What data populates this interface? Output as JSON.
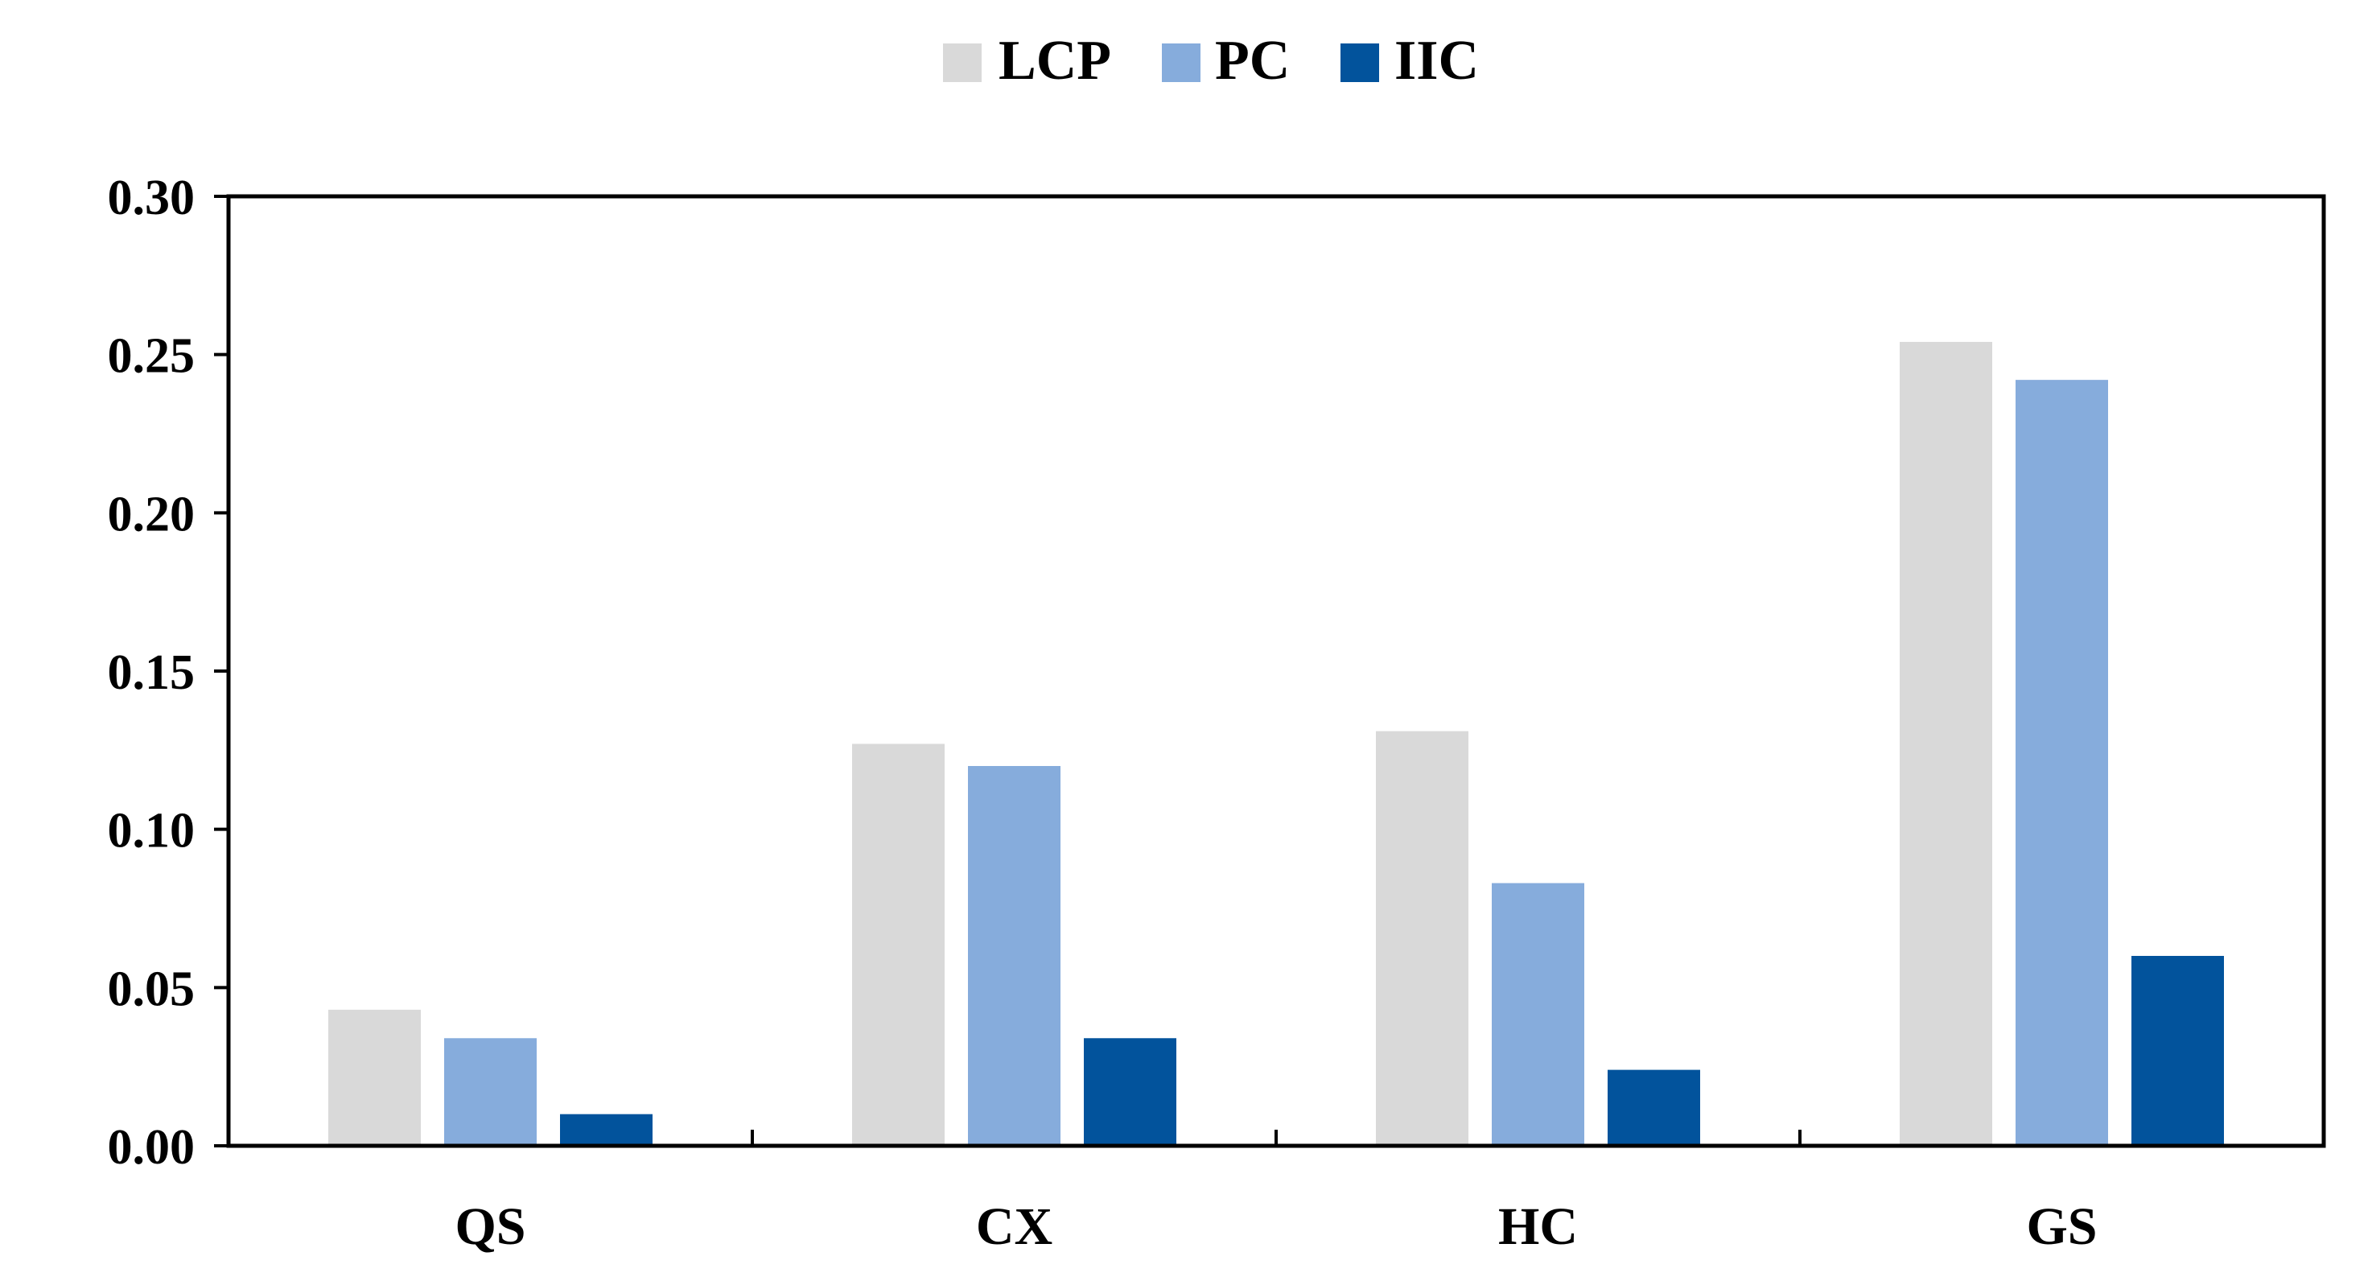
{
  "chart_data": {
    "type": "bar",
    "categories": [
      "QS",
      "CX",
      "HC",
      "GS"
    ],
    "series": [
      {
        "name": "LCP",
        "values": [
          0.043,
          0.127,
          0.131,
          0.254
        ],
        "color": "#d9d9d9"
      },
      {
        "name": "PC",
        "values": [
          0.034,
          0.12,
          0.083,
          0.242
        ],
        "color": "#86acdc"
      },
      {
        "name": "IIC",
        "values": [
          0.01,
          0.034,
          0.024,
          0.06
        ],
        "color": "#02539c"
      }
    ],
    "ylim": [
      0,
      0.3
    ],
    "yticks": [
      "0.00",
      "0.05",
      "0.10",
      "0.15",
      "0.20",
      "0.25",
      "0.30"
    ],
    "ytick_values": [
      0,
      0.05,
      0.1,
      0.15,
      0.2,
      0.25,
      0.3
    ],
    "title": "",
    "xlabel": "",
    "ylabel": "",
    "legend_position": "top-center",
    "grid": false
  }
}
